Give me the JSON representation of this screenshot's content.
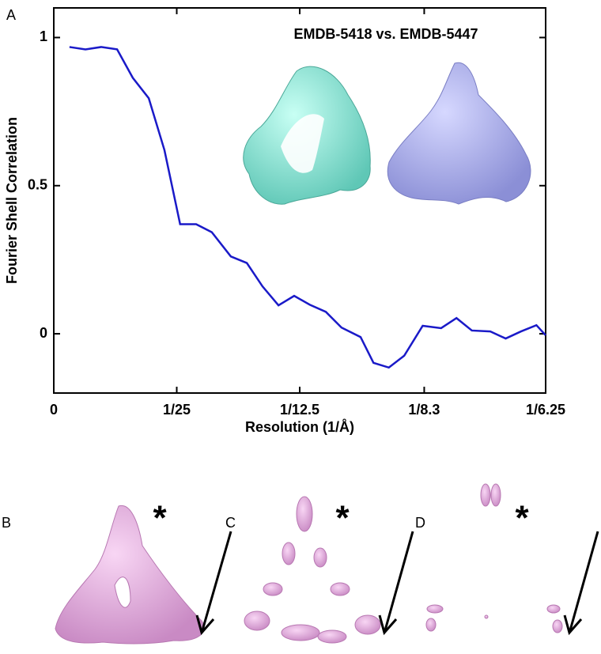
{
  "chart_data": {
    "type": "line",
    "title": "EMDB-5418 vs. EMDB-5447",
    "xlabel": "Resolution (1/Å)",
    "ylabel": "Fourier Shell Correlation",
    "x": [
      0.0051,
      0.0103,
      0.0154,
      0.0206,
      0.0257,
      0.0309,
      0.036,
      0.0411,
      0.0463,
      0.0514,
      0.0576,
      0.0628,
      0.0679,
      0.0731,
      0.0782,
      0.0833,
      0.0885,
      0.0936,
      0.0998,
      0.104,
      0.109,
      0.114,
      0.12,
      0.126,
      0.131,
      0.136,
      0.142,
      0.147,
      0.152,
      0.157,
      0.16
    ],
    "values": [
      0.968,
      0.96,
      0.968,
      0.96,
      0.864,
      0.795,
      0.62,
      0.37,
      0.37,
      0.343,
      0.261,
      0.239,
      0.16,
      0.096,
      0.128,
      0.098,
      0.074,
      0.021,
      -0.011,
      -0.098,
      -0.114,
      -0.074,
      0.027,
      0.019,
      0.053,
      0.011,
      0.008,
      -0.016,
      0.008,
      0.029,
      -0.005
    ],
    "color": "#1a1ac8",
    "xlim": [
      0,
      0.16
    ],
    "ylim": [
      -0.2,
      1.1
    ],
    "xticks": [
      0,
      {
        "value": 0.04,
        "label": "1/25"
      },
      {
        "value": 0.08,
        "label": "1/12.5"
      },
      {
        "value": 0.1205,
        "label": "1/8.3"
      },
      {
        "value": 0.16,
        "label": "1/6.25"
      }
    ],
    "yticks": [
      0,
      0.5,
      1
    ]
  },
  "panel_labels": [
    "A",
    "B",
    "C",
    "D"
  ],
  "asterisks": [
    "*",
    "*",
    "*"
  ]
}
